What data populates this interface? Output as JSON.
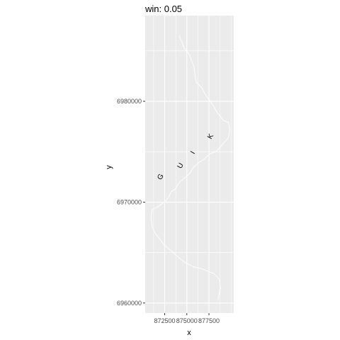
{
  "chart_data": {
    "type": "scatter",
    "title": "win: 0.05",
    "xlabel": "x",
    "ylabel": "y",
    "xlim": [
      870300,
      880300
    ],
    "ylim": [
      6959000,
      6988500
    ],
    "x_ticks": [
      872500,
      875000,
      877500
    ],
    "x_tick_labels": [
      "872500",
      "875000",
      "877500"
    ],
    "y_ticks": [
      6960000,
      6970000,
      6980000
    ],
    "y_tick_labels": [
      "6960000",
      "6970000",
      "6980000"
    ],
    "grid": true,
    "panel_background": "#ebebeb",
    "grid_color": "#ffffff",
    "line_color": "#ffffff",
    "text_color": "#000000",
    "points": [
      {
        "x": 872050,
        "y": 6972500,
        "label": "G"
      },
      {
        "x": 874300,
        "y": 6973600,
        "label": "U"
      },
      {
        "x": 875700,
        "y": 6974900,
        "label": "I"
      },
      {
        "x": 877700,
        "y": 6976500,
        "label": "K"
      }
    ],
    "outline": [
      [
        874150,
        6986500
      ],
      [
        874700,
        6985300
      ],
      [
        875300,
        6984600
      ],
      [
        875800,
        6983400
      ],
      [
        876050,
        6981900
      ],
      [
        876650,
        6981400
      ],
      [
        877200,
        6980500
      ],
      [
        877900,
        6979700
      ],
      [
        878500,
        6978800
      ],
      [
        879150,
        6978100
      ],
      [
        879700,
        6977900
      ],
      [
        879850,
        6977200
      ],
      [
        879700,
        6976400
      ],
      [
        879200,
        6975900
      ],
      [
        878300,
        6975000
      ],
      [
        877600,
        6974800
      ],
      [
        877000,
        6974300
      ],
      [
        876300,
        6973900
      ],
      [
        875700,
        6973400
      ],
      [
        875300,
        6972800
      ],
      [
        874600,
        6972300
      ],
      [
        874100,
        6971900
      ],
      [
        873700,
        6971300
      ],
      [
        873300,
        6971100
      ],
      [
        872800,
        6970300
      ],
      [
        872300,
        6969900
      ],
      [
        871650,
        6969500
      ],
      [
        871100,
        6969300
      ],
      [
        870950,
        6968500
      ],
      [
        871100,
        6967500
      ],
      [
        871500,
        6966800
      ],
      [
        871900,
        6966400
      ],
      [
        872400,
        6965800
      ],
      [
        873200,
        6965200
      ],
      [
        874100,
        6964500
      ],
      [
        874800,
        6964000
      ],
      [
        875700,
        6963600
      ],
      [
        876700,
        6963400
      ],
      [
        877500,
        6963100
      ],
      [
        878100,
        6962900
      ],
      [
        878700,
        6962300
      ],
      [
        878800,
        6961500
      ],
      [
        878650,
        6960900
      ],
      [
        878500,
        6960300
      ]
    ]
  }
}
